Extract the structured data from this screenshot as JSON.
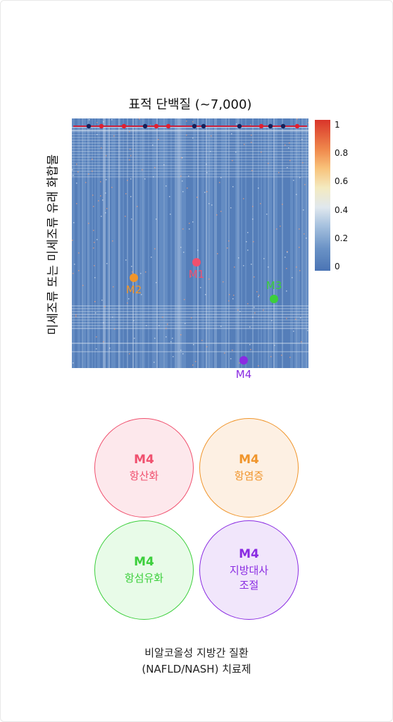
{
  "heatmap": {
    "title": "표적 단백질 (~7,000)",
    "y_label": "미세조류 또는 미세조류 유래 화합물",
    "colorbar": {
      "ticks": [
        "1",
        "0.8",
        "0.6",
        "0.4",
        "0.2",
        "0"
      ],
      "low_color": "#4a74b4",
      "high_color": "#d9352a"
    },
    "top_dots": [
      "navy",
      "red",
      "red",
      "navy",
      "red",
      "red",
      "navy",
      "navy",
      "navy",
      "red",
      "navy",
      "navy",
      "red"
    ]
  },
  "markers": [
    {
      "label": "M1",
      "color": "#f0506e"
    },
    {
      "label": "M2",
      "color": "#f0952b"
    },
    {
      "label": "M3",
      "color": "#3ccf3c"
    },
    {
      "label": "M4",
      "color": "#8a2be2"
    }
  ],
  "circles": [
    {
      "id": "M4",
      "text": "항산화",
      "color": "#f0506e",
      "fill": "#fde8ec"
    },
    {
      "id": "M4",
      "text": "항염증",
      "color": "#f0952b",
      "fill": "#fdf0e3"
    },
    {
      "id": "M4",
      "text": "항섬유화",
      "color": "#3ccf3c",
      "fill": "#e8fbe8"
    },
    {
      "id": "M4",
      "text": "지방대사\n조절",
      "color": "#8a2be2",
      "fill": "#f1e6fb"
    }
  ],
  "caption": {
    "line1": "비알코올성 지방간 질환",
    "line2": "(NAFLD/NASH) 치료제"
  }
}
